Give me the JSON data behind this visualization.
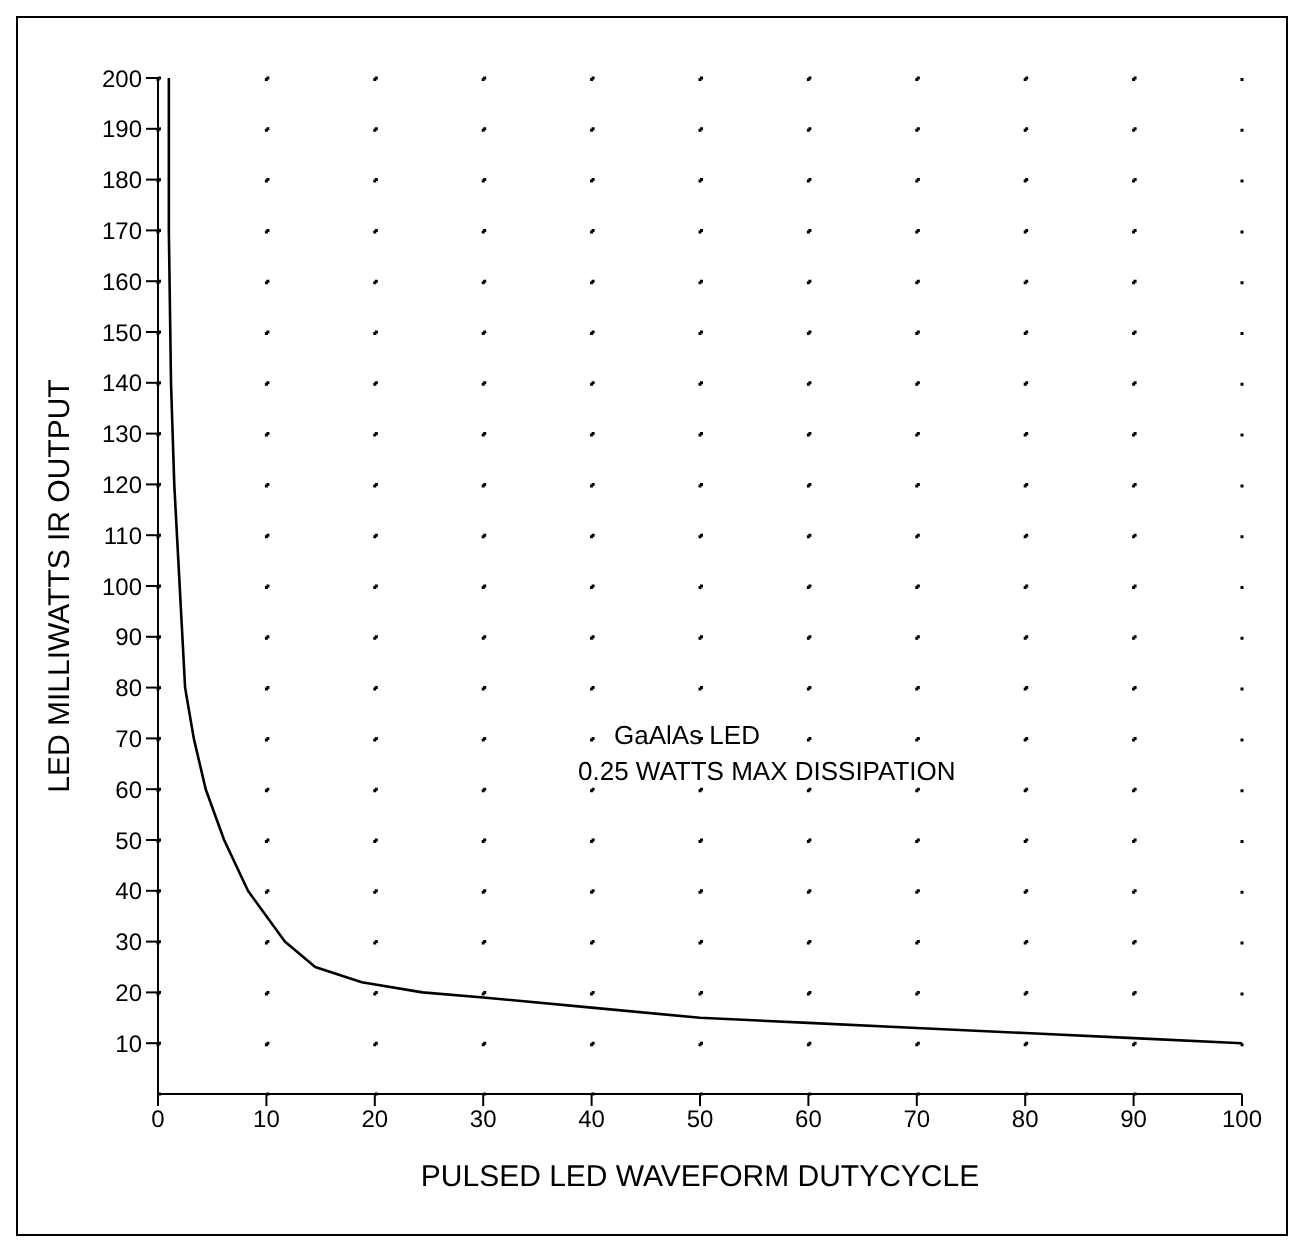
{
  "chart_data": {
    "type": "line",
    "xlabel": "PULSED LED WAVEFORM DUTYCYCLE",
    "ylabel": "LED MILLIWATTS IR OUTPUT",
    "annotations": [
      "GaAlAs LED",
      "0.25 WATTS MAX DISSIPATION"
    ],
    "series": [
      {
        "color": "#000000",
        "x": [
          1,
          1,
          1.2,
          1.5,
          2,
          2.5,
          3.3,
          4.4,
          6.1,
          8.3,
          11.7,
          14.5,
          18.8,
          24.4,
          30,
          40,
          50,
          60,
          70,
          80,
          90,
          100
        ],
        "values": [
          200,
          170,
          140,
          120,
          100,
          80,
          70,
          60,
          50,
          40,
          30,
          25,
          22,
          20,
          19,
          17,
          15,
          14,
          13,
          12,
          11,
          10
        ]
      }
    ],
    "xlim": [
      0,
      100
    ],
    "xticks": [
      0,
      10,
      20,
      30,
      40,
      50,
      60,
      70,
      80,
      90,
      100
    ],
    "ylim": [
      0,
      200
    ],
    "yticks": [
      10,
      20,
      30,
      40,
      50,
      60,
      70,
      80,
      90,
      100,
      110,
      120,
      130,
      140,
      150,
      160,
      170,
      180,
      190,
      200
    ],
    "grid": true,
    "marker": "none",
    "line_style": "solid"
  }
}
